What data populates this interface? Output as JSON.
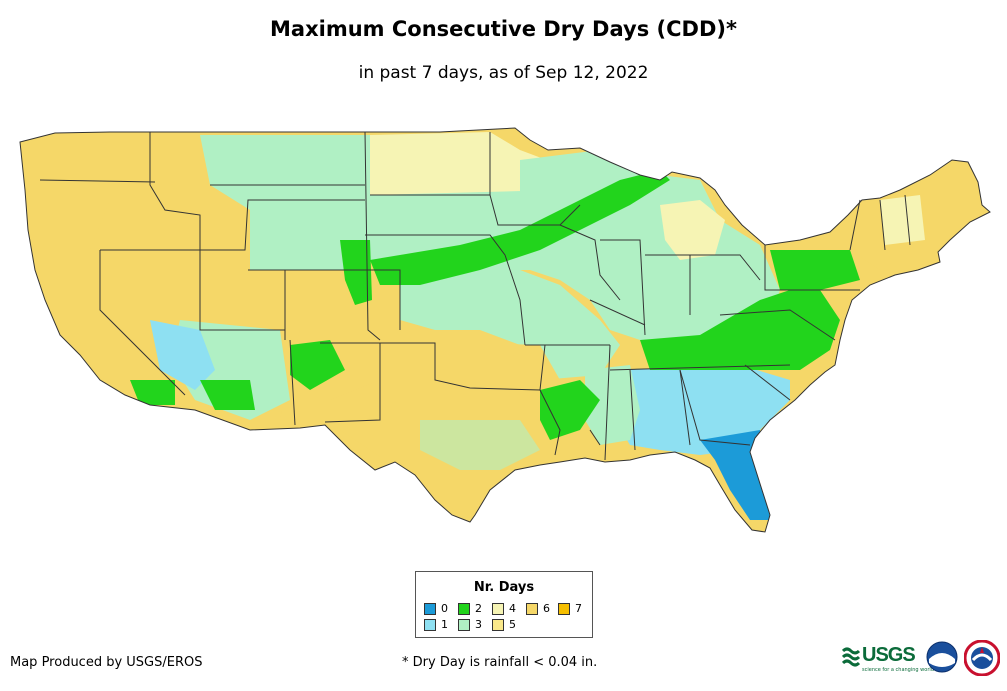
{
  "title": "Maximum Consecutive Dry Days (CDD)*",
  "subtitle": "in past 7 days, as of Sep 12, 2022",
  "legend": {
    "title": "Nr. Days",
    "items": [
      {
        "label": "0",
        "color": "#1c9bd8"
      },
      {
        "label": "1",
        "color": "#8ee0f2"
      },
      {
        "label": "2",
        "color": "#22d41c"
      },
      {
        "label": "3",
        "color": "#b0f0c4"
      },
      {
        "label": "4",
        "color": "#f6f4b4"
      },
      {
        "label": "5",
        "color": "#fae88a"
      },
      {
        "label": "6",
        "color": "#f5d768"
      },
      {
        "label": "7",
        "color": "#f6bf00"
      }
    ]
  },
  "credit": "Map Produced by USGS/EROS",
  "footnote": "* Dry Day is rainfall < 0.04 in.",
  "logos": {
    "usgs": "USGS",
    "usgs_tagline": "science for a changing world"
  }
}
